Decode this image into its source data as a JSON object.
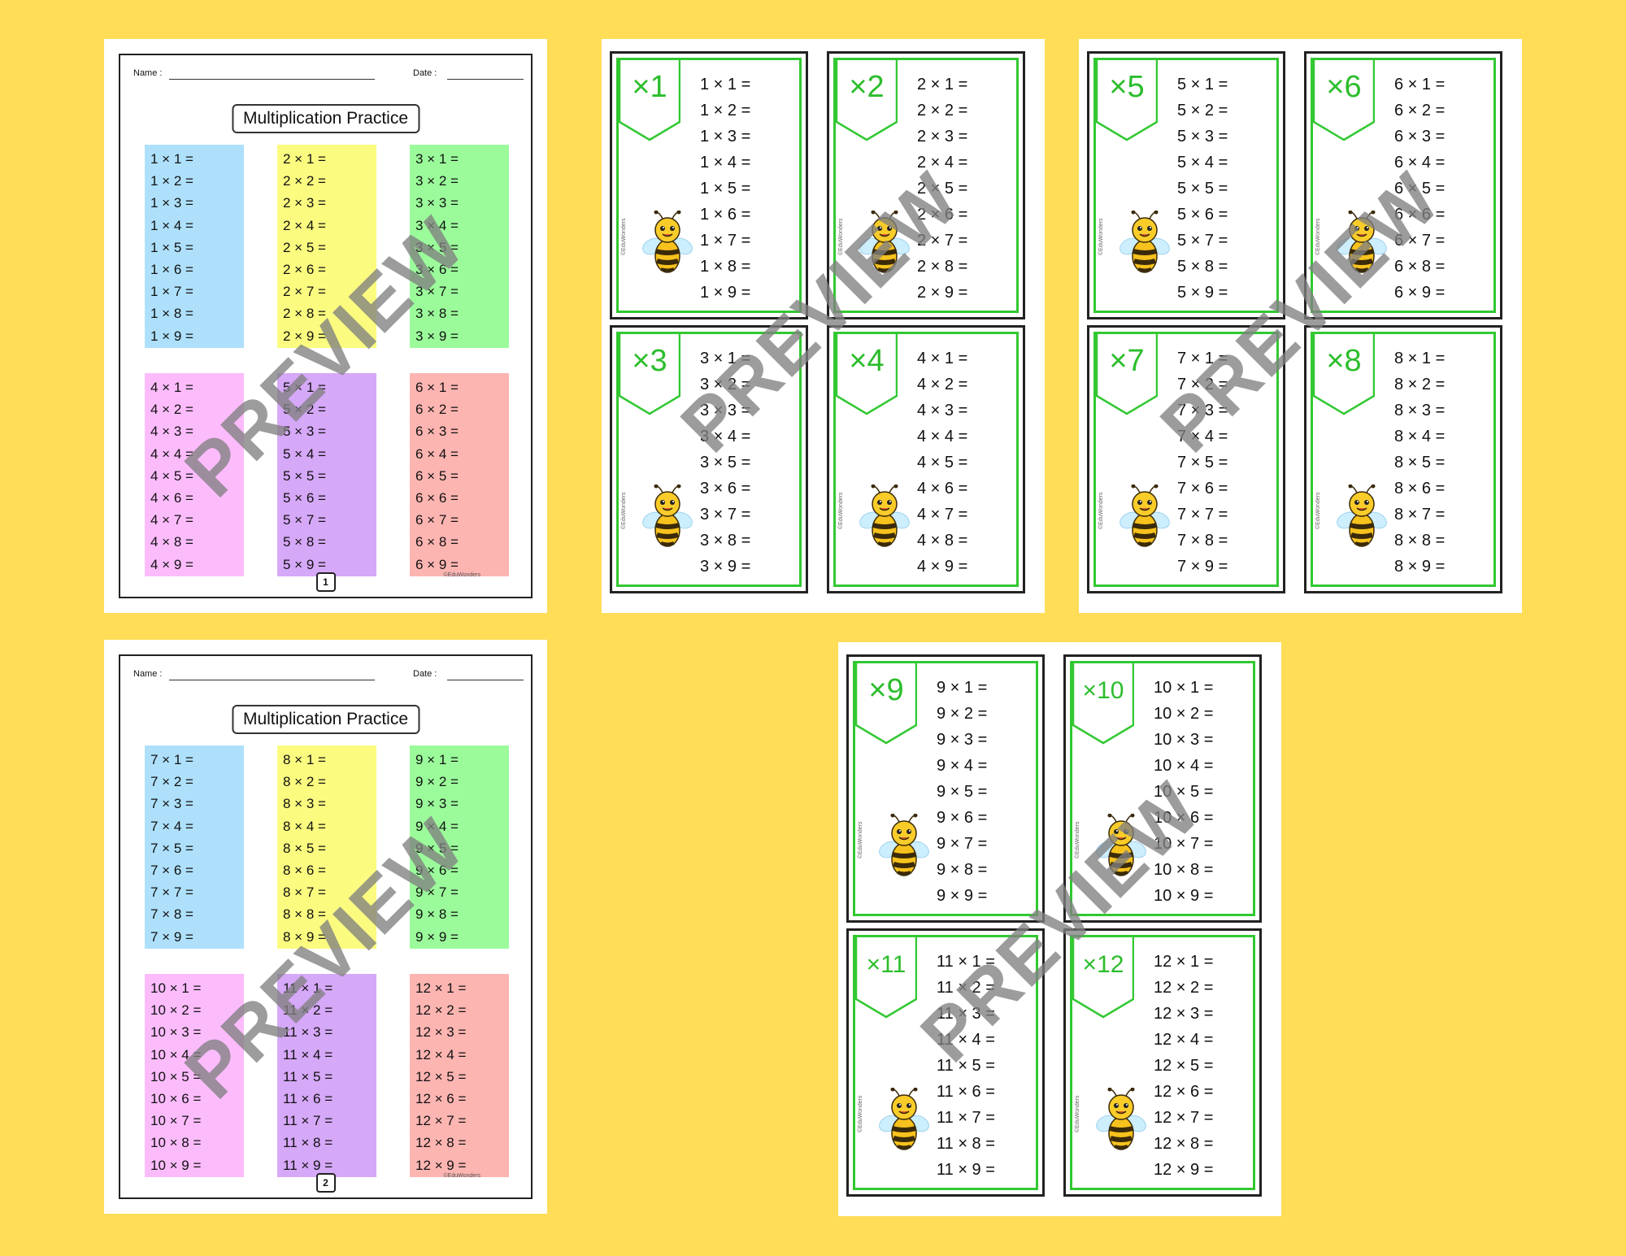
{
  "worksheet": {
    "name_label": "Name :",
    "date_label": "Date :",
    "title": "Multiplication Practice",
    "credit": "©EduWonders",
    "block_colors": [
      "#aee0fb",
      "#fbfb80",
      "#9bfb9b",
      "#fcbcfc",
      "#d6a8f8",
      "#fdb5b2"
    ]
  },
  "worksheet_pages": [
    {
      "page_number": "1",
      "tables": [
        1,
        2,
        3,
        4,
        5,
        6
      ]
    },
    {
      "page_number": "2",
      "tables": [
        7,
        8,
        9,
        10,
        11,
        12
      ]
    }
  ],
  "flashcard_sheets": [
    {
      "cards": [
        1,
        2,
        3,
        4
      ]
    },
    {
      "cards": [
        5,
        6,
        7,
        8
      ]
    },
    {
      "cards": [
        9,
        10,
        11,
        12
      ]
    }
  ],
  "flashcard": {
    "prefix": "×",
    "credit": "©EduWonders",
    "accent": "#32c832"
  },
  "equation": {
    "times": "×",
    "equals": "=",
    "multipliers": [
      1,
      2,
      3,
      4,
      5,
      6,
      7,
      8,
      9
    ]
  },
  "watermark": {
    "text": "PREVIEW",
    "color": "#808080"
  },
  "background_color": "#ffdd57"
}
